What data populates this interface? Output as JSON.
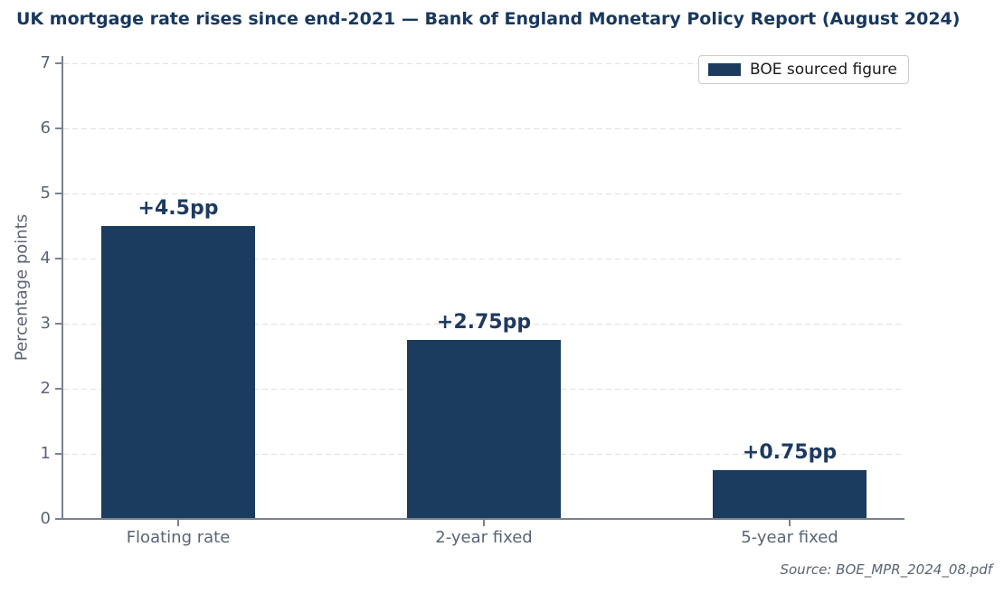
{
  "title": "UK mortgage rate rises since end-2021 — Bank of England Monetary Policy Report (August 2024)",
  "legend": {
    "label": "BOE sourced figure",
    "swatch_color": "#1b3c5f",
    "position": "upper right"
  },
  "source_note": "Source: BOE_MPR_2024_08.pdf",
  "colors": {
    "bar": "#1b3c5f",
    "title_text": "#17375e",
    "data_label_text": "#1e3a5f",
    "axis_text": "#5b6474",
    "spine": "#7b8290",
    "gridline": "#e0e0e0",
    "legend_border": "#cccccc",
    "legend_text": "#1a1a1a"
  },
  "chart_data": {
    "type": "bar",
    "categories": [
      "Floating rate",
      "2-year fixed",
      "5-year fixed"
    ],
    "values": [
      4.5,
      2.75,
      0.75
    ],
    "bar_labels": [
      "+4.5pp",
      "+2.75pp",
      "+0.75pp"
    ],
    "title": "UK mortgage rate rises since end-2021 — Bank of England Monetary Policy Report (August 2024)",
    "xlabel": "",
    "ylabel": "Percentage points",
    "ylim": [
      0,
      7
    ],
    "yticks": [
      0,
      1,
      2,
      3,
      4,
      5,
      6,
      7
    ],
    "grid": "horizontal dashed",
    "legend_entries": [
      "BOE sourced figure"
    ],
    "legend_position": "upper right",
    "source": "Source: BOE_MPR_2024_08.pdf"
  }
}
